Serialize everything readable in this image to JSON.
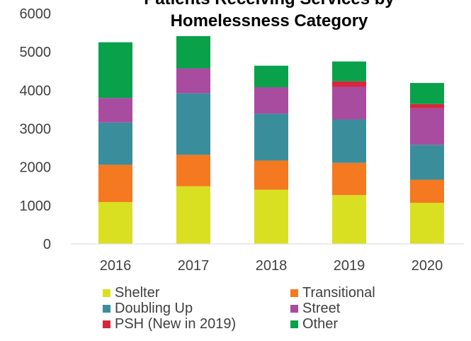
{
  "chart_data": {
    "type": "bar",
    "stacked": true,
    "title": "Patients Receiving Services by Homelessness Category",
    "title_lines": [
      "Patients Receiving Services by",
      "Homelessness Category"
    ],
    "xlabel": "",
    "ylabel": "",
    "ylim": [
      0,
      6000
    ],
    "yticks": [
      0,
      1000,
      2000,
      3000,
      4000,
      5000,
      6000
    ],
    "ytick_labels": [
      "0",
      "1000",
      "2000",
      "3000",
      "4000",
      "5000",
      "6000"
    ],
    "grid": false,
    "legend_position": "bottom",
    "categories": [
      "2016",
      "2017",
      "2018",
      "2019",
      "2020"
    ],
    "series": [
      {
        "name": "Shelter",
        "color": "#d9e021",
        "values": [
          1090,
          1500,
          1410,
          1270,
          1070
        ]
      },
      {
        "name": "Transitional",
        "color": "#f47920",
        "values": [
          970,
          820,
          760,
          840,
          600
        ]
      },
      {
        "name": "Doubling Up",
        "color": "#3a8e9c",
        "values": [
          1100,
          1600,
          1220,
          1130,
          910
        ]
      },
      {
        "name": "Street",
        "color": "#a84ca0",
        "values": [
          640,
          650,
          690,
          850,
          950
        ]
      },
      {
        "name": "PSH (New in 2019)",
        "color": "#d7263d",
        "values": [
          0,
          0,
          0,
          140,
          110
        ]
      },
      {
        "name": "Other",
        "color": "#0aa14b",
        "values": [
          1450,
          840,
          560,
          520,
          550
        ]
      }
    ]
  }
}
